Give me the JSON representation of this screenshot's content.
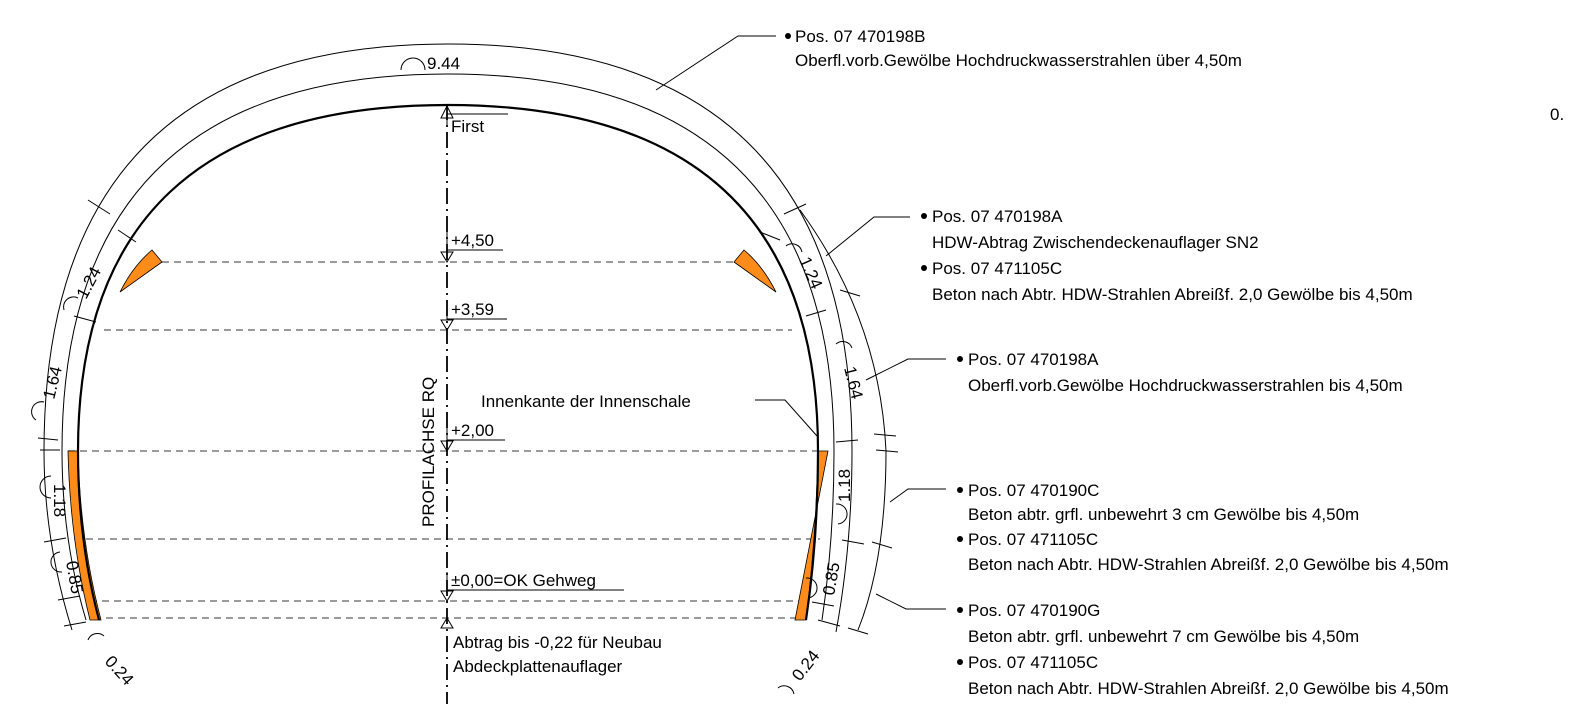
{
  "colors": {
    "removal_area": "#ff8c1a",
    "reference_line": "#7a7a7a",
    "line": "#000000"
  },
  "axis_label": "PROFILACHSE RQ",
  "inner_edge_label": "Innenkante der Innenschale",
  "levels": {
    "first": "First",
    "l450": "+4,50",
    "l359": "+3,59",
    "l200": "+2,00",
    "l000": "±0,00=OK Gehweg",
    "bottom_line1": "Abtrag bis -0,22 für Neubau",
    "bottom_line2": "Abdeckplattenauflager"
  },
  "arc_lengths": {
    "top": "9.44",
    "left_124": "1.24",
    "left_164": "1.64",
    "left_118": "1.18",
    "left_085": "0.85",
    "left_024": "0.24",
    "right_124": "1.24",
    "right_164": "1.64",
    "right_118": "1.18",
    "right_085": "0.85",
    "right_024": "0.24"
  },
  "callouts": {
    "c1": {
      "pos": "Pos. 07 470198B",
      "text": "Oberfl.vorb.Gewölbe Hochdruckwasserstrahlen über 4,50m"
    },
    "c2a": {
      "pos": "Pos. 07 470198A",
      "text": "HDW-Abtrag Zwischendeckenauflager SN2"
    },
    "c2b": {
      "pos": "Pos. 07 471105C",
      "text": "Beton nach Abtr. HDW-Strahlen Abreißf. 2,0 Gewölbe bis 4,50m"
    },
    "c3": {
      "pos": "Pos. 07 470198A",
      "text": "Oberfl.vorb.Gewölbe Hochdruckwasserstrahlen bis 4,50m"
    },
    "c4a": {
      "pos": "Pos. 07 470190C",
      "text": "Beton abtr. grfl. unbewehrt 3 cm Gewölbe bis 4,50m"
    },
    "c4b": {
      "pos": "Pos. 07 471105C",
      "text": "Beton nach Abtr. HDW-Strahlen Abreißf. 2,0 Gewölbe bis 4,50m"
    },
    "c5a": {
      "pos": "Pos. 07 470190G",
      "text": "Beton abtr. grfl. unbewehrt 7 cm Gewölbe bis 4,50m"
    },
    "c5b": {
      "pos": "Pos. 07 471105C",
      "text": "Beton nach Abtr. HDW-Strahlen Abreißf. 2,0 Gewölbe bis 4,50m"
    }
  },
  "cut_off_text": "0."
}
